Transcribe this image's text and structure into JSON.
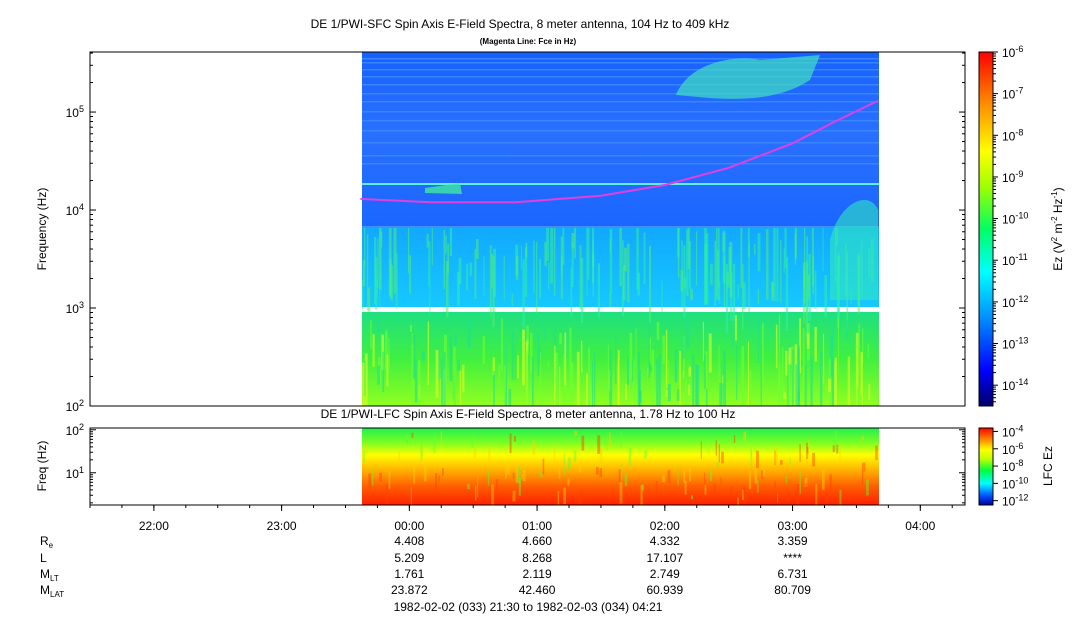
{
  "chart_data": [
    {
      "type": "heatmap",
      "title": "DE 1/PWI-SFC  Spin Axis E-Field Spectra, 8 meter antenna, 104 Hz to 409 kHz",
      "subtitle": "(Magenta Line: Fce in Hz)",
      "ylabel": "Frequency (Hz)",
      "yscale": "log",
      "ylim": [
        100,
        410000
      ],
      "yticks": [
        {
          "value": 100,
          "base": "10",
          "exp": "2"
        },
        {
          "value": 1000,
          "base": "10",
          "exp": "3"
        },
        {
          "value": 10000,
          "base": "10",
          "exp": "4"
        },
        {
          "value": 100000,
          "base": "10",
          "exp": "5"
        }
      ],
      "data_time_range": [
        "23:37",
        "03:40"
      ],
      "colorbar": {
        "label_parts": [
          "Ez (V",
          "2",
          " m",
          "-2",
          " Hz",
          "-1",
          ")"
        ],
        "scale": "log",
        "range": [
          -14.5,
          -6
        ],
        "ticks": [
          {
            "value": -6,
            "base": "10",
            "exp": "-6"
          },
          {
            "value": -7,
            "base": "10",
            "exp": "-7"
          },
          {
            "value": -8,
            "base": "10",
            "exp": "-8"
          },
          {
            "value": -9,
            "base": "10",
            "exp": "-9"
          },
          {
            "value": -10,
            "base": "10",
            "exp": "-10"
          },
          {
            "value": -11,
            "base": "10",
            "exp": "-11"
          },
          {
            "value": -12,
            "base": "10",
            "exp": "-12"
          },
          {
            "value": -13,
            "base": "10",
            "exp": "-13"
          },
          {
            "value": -14,
            "base": "10",
            "exp": "-14"
          }
        ]
      },
      "fce_line": {
        "color": "#e040e0",
        "points": [
          {
            "t": "23:37",
            "f": 13000
          },
          {
            "t": "00:10",
            "f": 12000
          },
          {
            "t": "00:50",
            "f": 12000
          },
          {
            "t": "01:30",
            "f": 14000
          },
          {
            "t": "02:00",
            "f": 18000
          },
          {
            "t": "02:30",
            "f": 27000
          },
          {
            "t": "03:00",
            "f": 48000
          },
          {
            "t": "03:20",
            "f": 80000
          },
          {
            "t": "03:40",
            "f": 130000
          }
        ]
      }
    },
    {
      "type": "heatmap",
      "title": "DE 1/PWI-LFC  Spin Axis E-Field Spectra, 8 meter antenna, 1.78 Hz to 100 Hz",
      "ylabel": "Freq (Hz)",
      "yscale": "log",
      "ylim": [
        1.78,
        110
      ],
      "yticks": [
        {
          "value": 10,
          "base": "10",
          "exp": "1"
        },
        {
          "value": 100,
          "base": "10",
          "exp": "2"
        }
      ],
      "data_time_range": [
        "23:37",
        "03:40"
      ],
      "colorbar": {
        "label": "LFC Ez",
        "scale": "log",
        "range": [
          -12.5,
          -3.6
        ],
        "ticks": [
          {
            "value": -4,
            "base": "10",
            "exp": "-4"
          },
          {
            "value": -6,
            "base": "10",
            "exp": "-6"
          },
          {
            "value": -8,
            "base": "10",
            "exp": "-8"
          },
          {
            "value": -10,
            "base": "10",
            "exp": "-10"
          },
          {
            "value": -12,
            "base": "10",
            "exp": "-12"
          }
        ]
      }
    }
  ],
  "x_axis": {
    "range": [
      "21:30",
      "04:21"
    ],
    "ticks": [
      "22:00",
      "23:00",
      "00:00",
      "01:00",
      "02:00",
      "03:00",
      "04:00"
    ]
  },
  "ephemeris": {
    "rows": [
      {
        "label": "R",
        "sub": "e",
        "values": [
          "4.408",
          "4.660",
          "4.332",
          "3.359"
        ]
      },
      {
        "label": "L",
        "sub": "",
        "values": [
          "5.209",
          "8.268",
          "17.107",
          "****"
        ]
      },
      {
        "label": "M",
        "sub": "LT",
        "values": [
          "1.761",
          "2.119",
          "2.749",
          "6.731"
        ]
      },
      {
        "label": "M",
        "sub": "LAT",
        "values": [
          "23.872",
          "42.460",
          "60.939",
          "80.709"
        ]
      }
    ],
    "times": [
      "00:00",
      "01:00",
      "02:00",
      "03:00"
    ]
  },
  "time_range_label": "1982-02-02 (033) 21:30 to 1982-02-03 (034) 04:21"
}
